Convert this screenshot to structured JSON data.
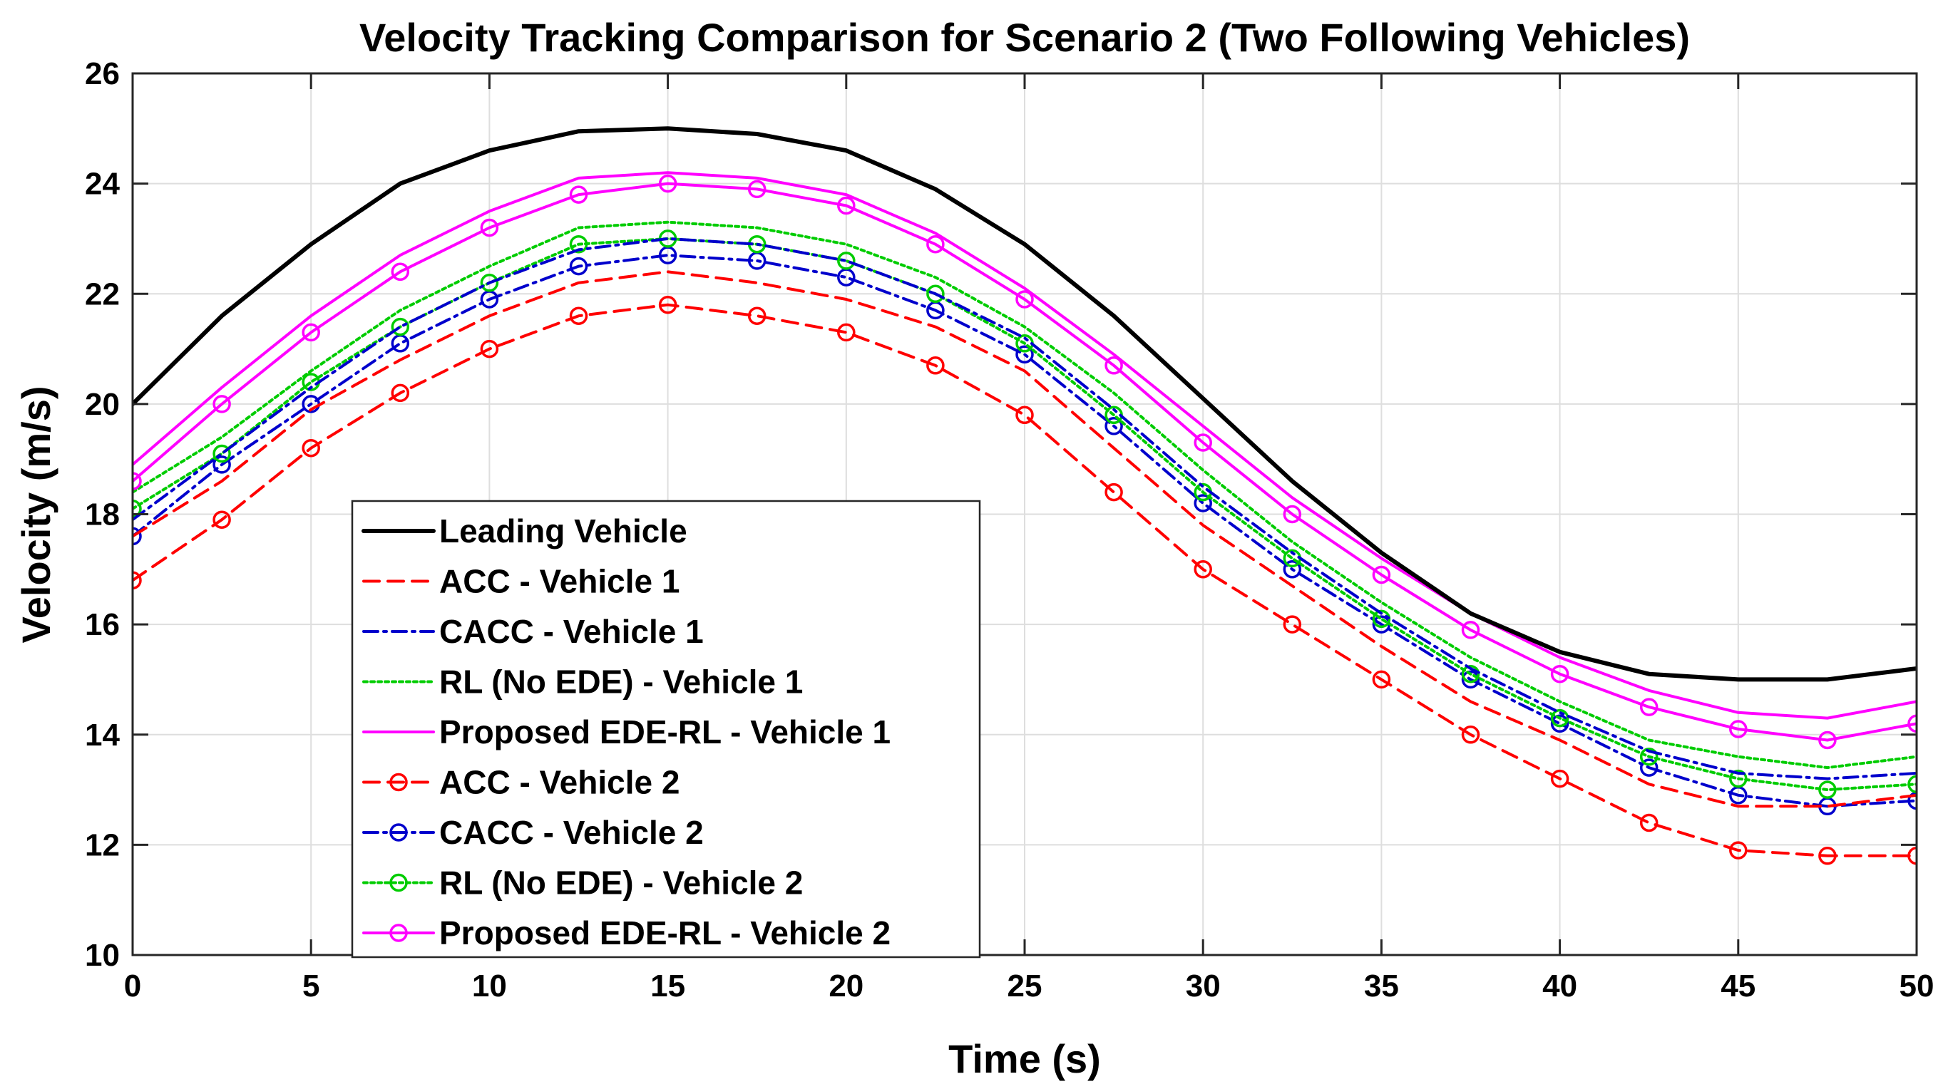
{
  "chart_data": {
    "type": "line",
    "title": "Velocity Tracking Comparison for Scenario 2 (Two Following Vehicles)",
    "xlabel": "Time (s)",
    "ylabel": "Velocity (m/s)",
    "xlim": [
      0,
      50
    ],
    "ylim": [
      10,
      26
    ],
    "xticks": [
      0,
      5,
      10,
      15,
      20,
      25,
      30,
      35,
      40,
      45,
      50
    ],
    "yticks": [
      10,
      12,
      14,
      16,
      18,
      20,
      22,
      24,
      26
    ],
    "grid": true,
    "legend_position": "lower-left",
    "x": [
      0,
      2.5,
      5,
      7.5,
      10,
      12.5,
      15,
      17.5,
      20,
      22.5,
      25,
      27.5,
      30,
      32.5,
      35,
      37.5,
      40,
      42.5,
      45,
      47.5,
      50
    ],
    "series": [
      {
        "name": "Leading Vehicle",
        "color": "#000000",
        "dash": "solid",
        "marker": "none",
        "values": [
          20.0,
          21.6,
          22.9,
          24.0,
          24.6,
          24.95,
          25.0,
          24.9,
          24.6,
          23.9,
          22.9,
          21.6,
          20.1,
          18.6,
          17.3,
          16.2,
          15.5,
          15.1,
          15.0,
          15.0,
          15.2
        ]
      },
      {
        "name": "ACC - Vehicle 1",
        "color": "#ff0000",
        "dash": "dashed",
        "marker": "none",
        "values": [
          17.6,
          18.6,
          19.9,
          20.8,
          21.6,
          22.2,
          22.4,
          22.2,
          21.9,
          21.4,
          20.6,
          19.2,
          17.8,
          16.7,
          15.6,
          14.6,
          13.9,
          13.1,
          12.7,
          12.7,
          12.9
        ]
      },
      {
        "name": "CACC - Vehicle 1",
        "color": "#0000cc",
        "dash": "dashdot",
        "marker": "none",
        "values": [
          17.9,
          19.1,
          20.3,
          21.4,
          22.2,
          22.8,
          23.0,
          22.9,
          22.6,
          22.0,
          21.2,
          19.9,
          18.5,
          17.3,
          16.2,
          15.2,
          14.4,
          13.7,
          13.3,
          13.2,
          13.3
        ]
      },
      {
        "name": "RL (No EDE) - Vehicle 1",
        "color": "#00cc00",
        "dash": "dotted",
        "marker": "none",
        "values": [
          18.4,
          19.4,
          20.6,
          21.7,
          22.5,
          23.2,
          23.3,
          23.2,
          22.9,
          22.3,
          21.4,
          20.2,
          18.8,
          17.5,
          16.4,
          15.4,
          14.6,
          13.9,
          13.6,
          13.4,
          13.6
        ]
      },
      {
        "name": "Proposed EDE-RL - Vehicle 1",
        "color": "#ff00ff",
        "dash": "solid",
        "marker": "none",
        "values": [
          18.9,
          20.3,
          21.6,
          22.7,
          23.5,
          24.1,
          24.2,
          24.1,
          23.8,
          23.1,
          22.1,
          20.9,
          19.6,
          18.3,
          17.2,
          16.2,
          15.4,
          14.8,
          14.4,
          14.3,
          14.6
        ]
      },
      {
        "name": "ACC - Vehicle 2",
        "color": "#ff0000",
        "dash": "dashed",
        "marker": "circle",
        "values": [
          16.8,
          17.9,
          19.2,
          20.2,
          21.0,
          21.6,
          21.8,
          21.6,
          21.3,
          20.7,
          19.8,
          18.4,
          17.0,
          16.0,
          15.0,
          14.0,
          13.2,
          12.4,
          11.9,
          11.8,
          11.8
        ]
      },
      {
        "name": "CACC - Vehicle 2",
        "color": "#0000cc",
        "dash": "dashdot",
        "marker": "circle",
        "values": [
          17.6,
          18.9,
          20.0,
          21.1,
          21.9,
          22.5,
          22.7,
          22.6,
          22.3,
          21.7,
          20.9,
          19.6,
          18.2,
          17.0,
          16.0,
          15.0,
          14.2,
          13.4,
          12.9,
          12.7,
          12.8
        ]
      },
      {
        "name": "RL (No EDE) - Vehicle 2",
        "color": "#00cc00",
        "dash": "dotted",
        "marker": "circle",
        "values": [
          18.1,
          19.1,
          20.4,
          21.4,
          22.2,
          22.9,
          23.0,
          22.9,
          22.6,
          22.0,
          21.1,
          19.8,
          18.4,
          17.2,
          16.1,
          15.1,
          14.3,
          13.6,
          13.2,
          13.0,
          13.1
        ]
      },
      {
        "name": "Proposed EDE-RL - Vehicle 2",
        "color": "#ff00ff",
        "dash": "solid",
        "marker": "circle",
        "values": [
          18.6,
          20.0,
          21.3,
          22.4,
          23.2,
          23.8,
          24.0,
          23.9,
          23.6,
          22.9,
          21.9,
          20.7,
          19.3,
          18.0,
          16.9,
          15.9,
          15.1,
          14.5,
          14.1,
          13.9,
          14.2
        ]
      }
    ]
  }
}
